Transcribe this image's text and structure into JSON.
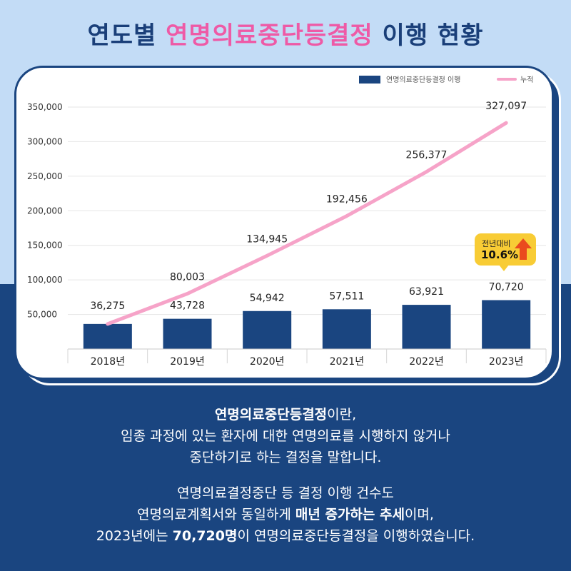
{
  "title": {
    "part1": "연도별 ",
    "highlight": "연명의료중단등결정",
    "part2": " 이행 현황"
  },
  "chart_data": {
    "type": "bar",
    "categories": [
      "2018년",
      "2019년",
      "2020년",
      "2021년",
      "2022년",
      "2023년"
    ],
    "series": [
      {
        "name": "연명의료중단등결정 이행",
        "type": "bar",
        "color": "#1a4580",
        "values": [
          36275,
          43728,
          54942,
          57511,
          63921,
          70720
        ]
      },
      {
        "name": "누적",
        "type": "line",
        "color": "#f6a3c8",
        "values": [
          36275,
          80003,
          134945,
          192456,
          256377,
          327097
        ]
      }
    ],
    "data_labels": {
      "bar": [
        "36,275",
        "43,728",
        "54,942",
        "57,511",
        "63,921",
        "70,720"
      ],
      "line": [
        "",
        "80,003",
        "134,945",
        "192,456",
        "256,377",
        "327,097"
      ]
    },
    "yticks": [
      "50,000",
      "100,000",
      "150,000",
      "200,000",
      "250,000",
      "300,000",
      "350,000"
    ],
    "ylim": [
      0,
      350000
    ],
    "grid": true,
    "legend_position": "top-right"
  },
  "badge": {
    "text": "전년대비",
    "value": "10.6%"
  },
  "description": {
    "line1_bold": "연명의료중단등결정",
    "line1_rest": "이란,",
    "line2": "임종 과정에 있는 환자에 대한 연명의료를 시행하지 않거나",
    "line3": "중단하기로 하는 결정을 말합니다.",
    "line4": "연명의료결정중단 등 결정 이행 건수도",
    "line5_a": "연명의료계획서와 동일하게 ",
    "line5_b": "매년 증가하는 추세",
    "line5_c": "이며,",
    "line6_a": "2023년에는 ",
    "line6_b": "70,720명",
    "line6_c": "이 연명의료중단등결정을 이행하였습니다."
  }
}
